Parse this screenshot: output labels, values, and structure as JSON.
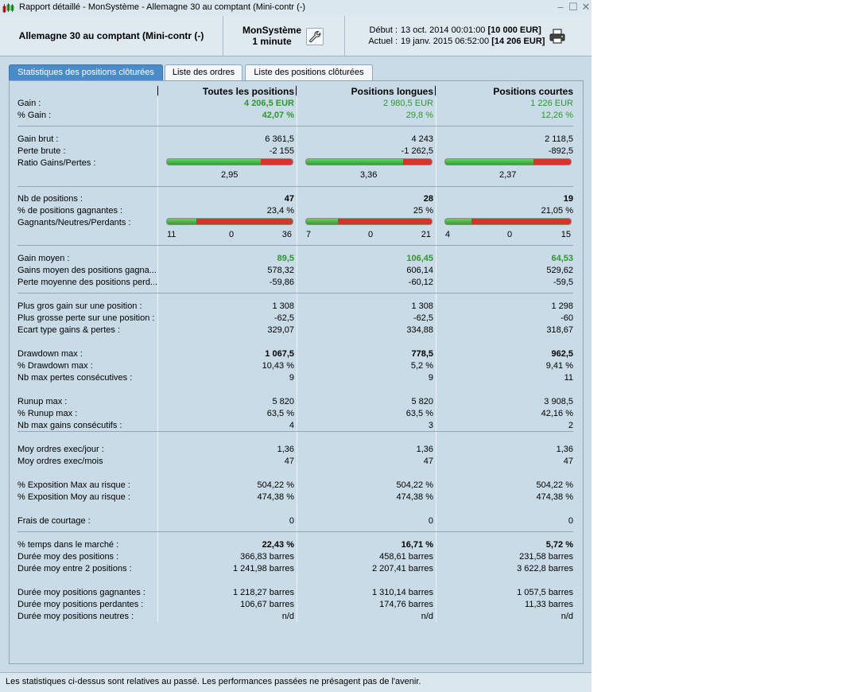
{
  "window": {
    "title": "Rapport détaillé - MonSystème - Allemagne 30 au comptant (Mini-contr (-)"
  },
  "header": {
    "instrument": "Allemagne 30 au comptant (Mini-contr (-)",
    "system_name": "MonSystème",
    "timeframe": "1 minute",
    "start_label": "Début :",
    "start_date": "13 oct. 2014 00:01:00",
    "start_capital": "[10 000 EUR]",
    "end_label": "Actuel :",
    "end_date": "19 janv. 2015 06:52:00",
    "end_capital": "[14 206 EUR]"
  },
  "tabs": [
    "Statistiques des positions clôturées",
    "Liste des ordres",
    "Liste des positions clôturées"
  ],
  "columns": [
    "Toutes les positions",
    "Positions longues",
    "Positions courtes"
  ],
  "rows": [
    {
      "label": "Gain :",
      "values": [
        "4 206,5 EUR",
        "2 980,5 EUR",
        "1 226 EUR"
      ]
    },
    {
      "label": "% Gain :",
      "values": [
        "42,07 %",
        "29,8 %",
        "12,26 %"
      ]
    },
    {
      "label": "Gain brut :",
      "values": [
        "6 361,5",
        "4 243",
        "2 118,5"
      ]
    },
    {
      "label": "Perte brute :",
      "values": [
        "-2 155",
        "-1 262,5",
        "-892,5"
      ]
    },
    {
      "label": "Ratio Gains/Pertes :",
      "values": [
        "2,95",
        "3,36",
        "2,37"
      ],
      "bar_fraction": [
        0.747,
        0.771,
        0.703
      ]
    },
    {
      "label": "Nb de positions :",
      "values": [
        "47",
        "28",
        "19"
      ]
    },
    {
      "label": "% de positions gagnantes :",
      "values": [
        "23,4 %",
        "25 %",
        "21,05 %"
      ]
    },
    {
      "label": "Gagnants/Neutres/Perdants :",
      "counts": [
        [
          "11",
          "0",
          "36"
        ],
        [
          "7",
          "0",
          "21"
        ],
        [
          "4",
          "0",
          "15"
        ]
      ],
      "bar_fraction": [
        0.234,
        0.25,
        0.2105
      ]
    },
    {
      "label": "Gain moyen :",
      "values": [
        "89,5",
        "106,45",
        "64,53"
      ]
    },
    {
      "label": "Gains moyen des positions gagna...",
      "values": [
        "578,32",
        "606,14",
        "529,62"
      ]
    },
    {
      "label": "Perte moyenne des positions perd...",
      "values": [
        "-59,86",
        "-60,12",
        "-59,5"
      ]
    },
    {
      "label": "Plus gros gain sur une position :",
      "values": [
        "1 308",
        "1 308",
        "1 298"
      ]
    },
    {
      "label": "Plus grosse perte sur une position :",
      "values": [
        "-62,5",
        "-62,5",
        "-60"
      ]
    },
    {
      "label": "Ecart type gains & pertes :",
      "values": [
        "329,07",
        "334,88",
        "318,67"
      ]
    },
    {
      "label": "Drawdown max :",
      "values": [
        "1 067,5",
        "778,5",
        "962,5"
      ]
    },
    {
      "label": "% Drawdown max :",
      "values": [
        "10,43 %",
        "5,2 %",
        "9,41 %"
      ]
    },
    {
      "label": "Nb max pertes consécutives :",
      "values": [
        "9",
        "9",
        "11"
      ]
    },
    {
      "label": "Runup max :",
      "values": [
        "5 820",
        "5 820",
        "3 908,5"
      ]
    },
    {
      "label": "% Runup max :",
      "values": [
        "63,5 %",
        "63,5 %",
        "42,16 %"
      ]
    },
    {
      "label": "Nb max gains consécutifs :",
      "values": [
        "4",
        "3",
        "2"
      ]
    },
    {
      "label": "Moy ordres exec/jour :",
      "values": [
        "1,36",
        "1,36",
        "1,36"
      ]
    },
    {
      "label": "Moy ordres exec/mois",
      "values": [
        "47",
        "47",
        "47"
      ]
    },
    {
      "label": "% Exposition Max au risque :",
      "values": [
        "504,22 %",
        "504,22 %",
        "504,22 %"
      ]
    },
    {
      "label": "% Exposition Moy au risque :",
      "values": [
        "474,38 %",
        "474,38 %",
        "474,38 %"
      ]
    },
    {
      "label": "Frais de courtage :",
      "values": [
        "0",
        "0",
        "0"
      ]
    },
    {
      "label": "% temps dans le marché :",
      "values": [
        "22,43 %",
        "16,71 %",
        "5,72 %"
      ]
    },
    {
      "label": "Durée moy des positions :",
      "values": [
        "366,83 barres",
        "458,61 barres",
        "231,58 barres"
      ]
    },
    {
      "label": "Durée moy entre 2 positions :",
      "values": [
        "1 241,98 barres",
        "2 207,41 barres",
        "3 622,8 barres"
      ]
    },
    {
      "label": "Durée moy positions gagnantes :",
      "values": [
        "1 218,27 barres",
        "1 310,14 barres",
        "1 057,5 barres"
      ]
    },
    {
      "label": "Durée moy positions perdantes :",
      "values": [
        "106,67 barres",
        "174,76 barres",
        "11,33 barres"
      ]
    },
    {
      "label": "Durée moy positions neutres :",
      "values": [
        "n/d",
        "n/d",
        "n/d"
      ]
    }
  ],
  "footer": {
    "note": "Les statistiques ci-dessus sont relatives au passé. Les performances passées ne présagent pas de l'avenir."
  }
}
